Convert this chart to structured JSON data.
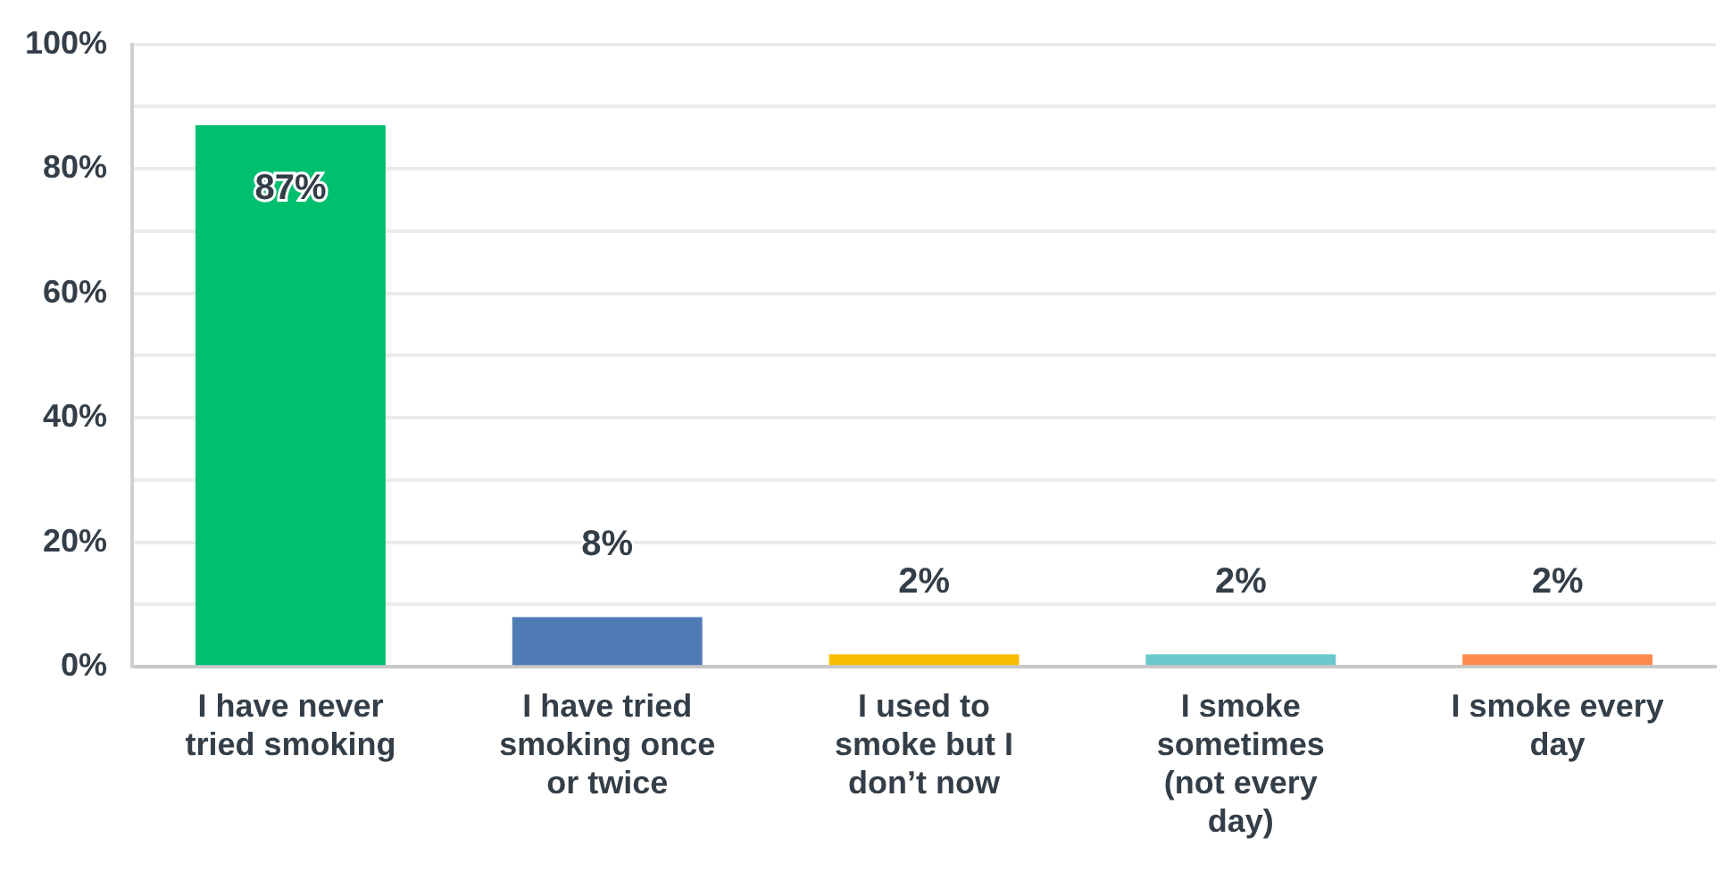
{
  "chart_data": {
    "type": "bar",
    "categories": [
      "I have never tried smoking",
      "I have tried smoking once or twice",
      "I used to smoke but I don’t now",
      "I smoke sometimes (not every day)",
      "I smoke every day"
    ],
    "values": [
      87,
      8,
      2,
      2,
      2
    ],
    "value_labels": [
      "87%",
      "8%",
      "2%",
      "2%",
      "2%"
    ],
    "colors": [
      "#00bf6f",
      "#507cb6",
      "#f9be00",
      "#6bc8cd",
      "#ff8b4f"
    ],
    "ylim": [
      0,
      100
    ],
    "yticks": [
      {
        "value": 0,
        "label": "0%"
      },
      {
        "value": 10,
        "label": null
      },
      {
        "value": 20,
        "label": "20%"
      },
      {
        "value": 30,
        "label": null
      },
      {
        "value": 40,
        "label": "40%"
      },
      {
        "value": 50,
        "label": null
      },
      {
        "value": 60,
        "label": "60%"
      },
      {
        "value": 70,
        "label": null
      },
      {
        "value": 80,
        "label": "80%"
      },
      {
        "value": 90,
        "label": null
      },
      {
        "value": 100,
        "label": "100%"
      }
    ],
    "grid": "y",
    "legend": false
  }
}
